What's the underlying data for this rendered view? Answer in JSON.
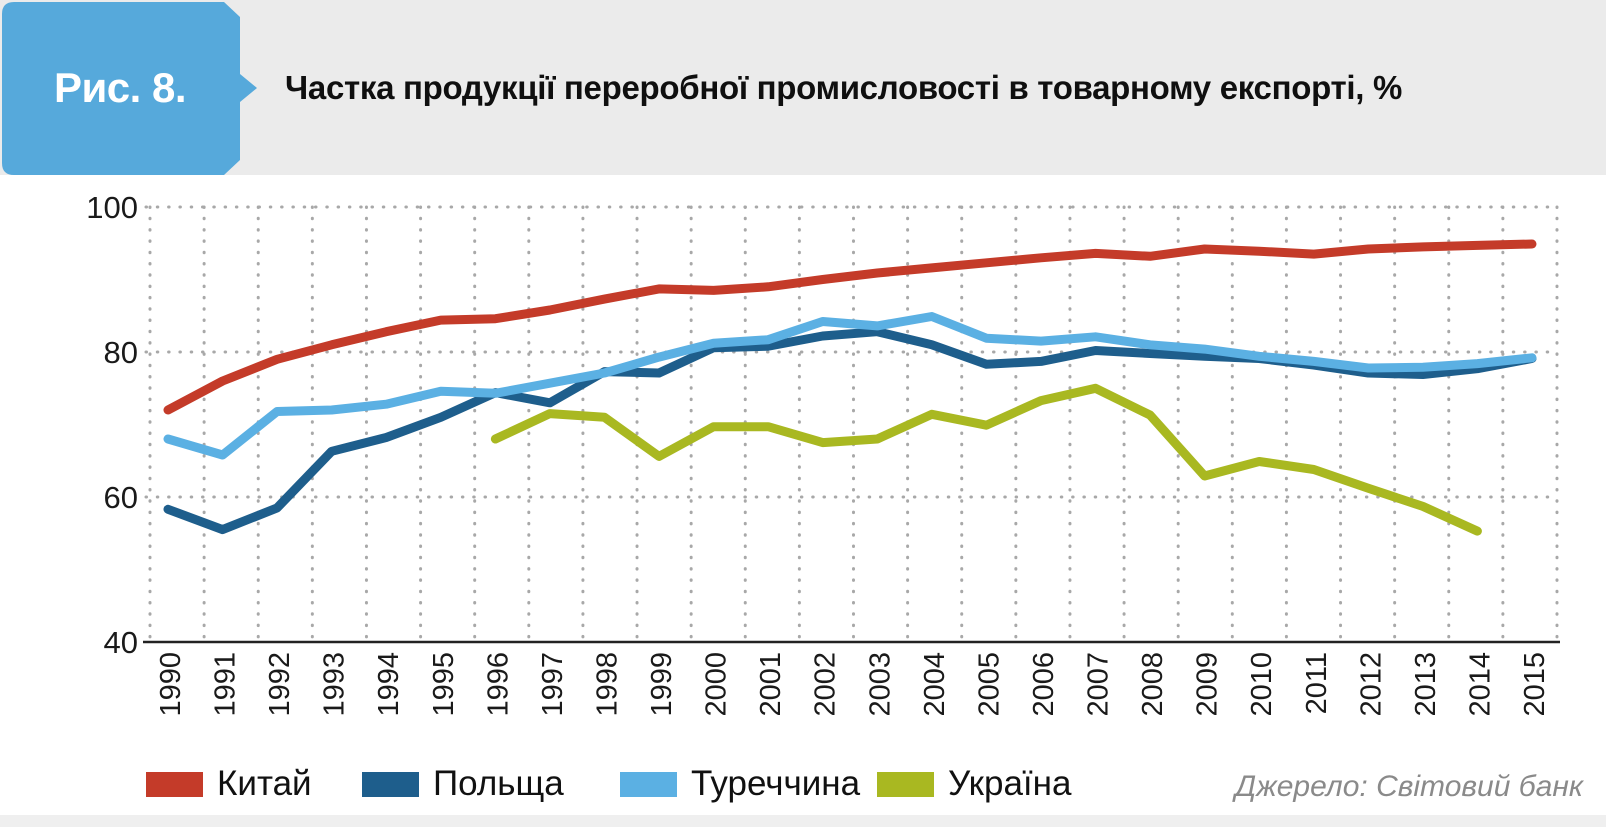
{
  "header": {
    "badge": "Рис. 8.",
    "title": "Частка продукції переробної промисловості в товарному експорті, %"
  },
  "source": "Джерело: Світовий банк",
  "colors": {
    "header_bg": "#ebebeb",
    "badge_bg": "#56a9db",
    "grid_dots": "#a8a8a8",
    "axis": "#222222",
    "tick_text": "#1a1a1a",
    "source_text": "#8a8a8a"
  },
  "chart_data": {
    "type": "line",
    "x": [
      1990,
      1991,
      1992,
      1993,
      1994,
      1995,
      1996,
      1997,
      1998,
      1999,
      2000,
      2001,
      2002,
      2003,
      2004,
      2005,
      2006,
      2007,
      2008,
      2009,
      2010,
      2011,
      2012,
      2013,
      2014,
      2015
    ],
    "series": [
      {
        "name": "Китай",
        "color": "#c43b29",
        "values": [
          72,
          76,
          79,
          81,
          82.8,
          84.4,
          84.6,
          85.8,
          87.3,
          88.7,
          88.5,
          89,
          90,
          90.9,
          91.6,
          92.3,
          93,
          93.6,
          93.2,
          94.2,
          93.9,
          93.5,
          94.2,
          94.5,
          94.7,
          94.9
        ]
      },
      {
        "name": "Польща",
        "color": "#1e5e8c",
        "values": [
          58.3,
          55.5,
          58.5,
          66.3,
          68.2,
          71,
          74.4,
          73,
          77.3,
          77.1,
          80.6,
          80.8,
          82.2,
          82.8,
          81,
          78.3,
          78.7,
          80.2,
          79.8,
          79.4,
          79.1,
          78.2,
          77.1,
          76.9,
          77.7,
          79.1
        ]
      },
      {
        "name": "Туреччина",
        "color": "#5bb0e3",
        "values": [
          68,
          65.8,
          71.8,
          72,
          72.8,
          74.6,
          74.3,
          75.7,
          77.1,
          79.3,
          81.2,
          81.7,
          84.2,
          83.6,
          84.9,
          81.9,
          81.5,
          82.1,
          81,
          80.4,
          79.4,
          78.7,
          77.8,
          77.9,
          78.4,
          79.2
        ]
      },
      {
        "name": "Україна",
        "color": "#a9b821",
        "values": [
          null,
          null,
          null,
          null,
          null,
          null,
          68,
          71.5,
          71,
          65.6,
          69.7,
          69.7,
          67.5,
          68,
          71.4,
          69.9,
          73.3,
          75,
          71.3,
          62.9,
          64.9,
          63.8,
          61.2,
          58.7,
          55.3,
          null
        ]
      }
    ],
    "title": "Частка продукції переробної промисловості в товарному експорті, %",
    "xlabel": "",
    "ylabel": "",
    "ylim": [
      40,
      100
    ],
    "yticks": [
      40,
      60,
      80,
      100
    ],
    "grid": "dotted",
    "legend_position": "bottom"
  },
  "legend_item_lefts": [
    146,
    362,
    620,
    877
  ]
}
